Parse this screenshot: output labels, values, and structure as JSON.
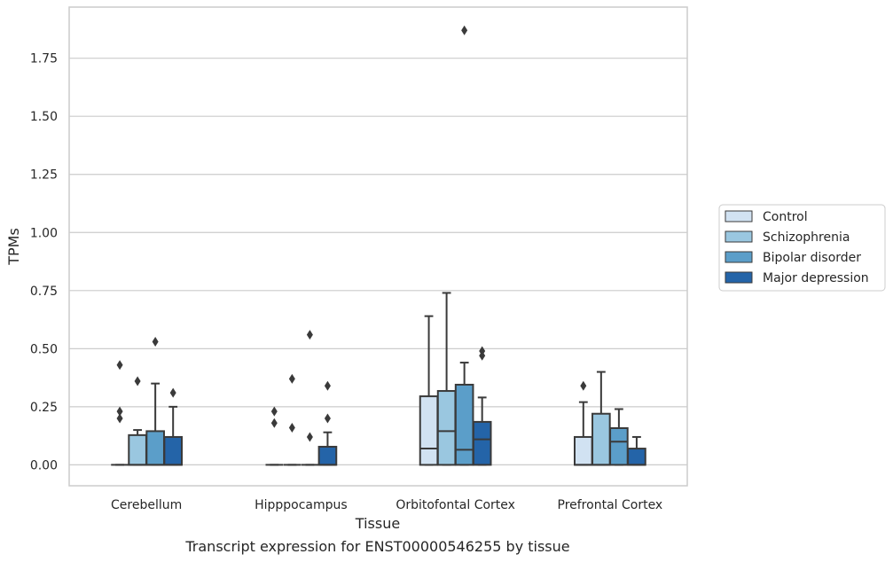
{
  "chart_data": {
    "type": "box",
    "xlabel": "Tissue",
    "ylabel": "TPMs",
    "caption": "Transcript expression for ENST00000546255 by tissue",
    "ylim": [
      -0.09,
      1.97
    ],
    "yticks": [
      0.0,
      0.25,
      0.5,
      0.75,
      1.0,
      1.25,
      1.5,
      1.75
    ],
    "ytick_labels": [
      "0.00",
      "0.25",
      "0.50",
      "0.75",
      "1.00",
      "1.25",
      "1.50",
      "1.75"
    ],
    "grid": "horizontal",
    "legend_position": "right-center",
    "categories": [
      "Cerebellum",
      "Hipppocampus",
      "Orbitofontal Cortex",
      "Prefrontal Cortex"
    ],
    "series": [
      {
        "name": "Control",
        "color": "#d1e2f2",
        "boxes": [
          {
            "q1": 0.0,
            "median": 0.0,
            "q3": 0.0,
            "whislo": 0.0,
            "whishi": 0.0,
            "fliers": [
              0.43,
              0.23,
              0.2
            ]
          },
          {
            "q1": 0.0,
            "median": 0.0,
            "q3": 0.0,
            "whislo": 0.0,
            "whishi": 0.0,
            "fliers": [
              0.23,
              0.18
            ]
          },
          {
            "q1": 0.0,
            "median": 0.07,
            "q3": 0.295,
            "whislo": 0.0,
            "whishi": 0.64,
            "fliers": []
          },
          {
            "q1": 0.0,
            "median": 0.0,
            "q3": 0.12,
            "whislo": 0.0,
            "whishi": 0.27,
            "fliers": [
              0.34
            ]
          }
        ]
      },
      {
        "name": "Schizophrenia",
        "color": "#9ac7e0",
        "boxes": [
          {
            "q1": 0.0,
            "median": 0.0,
            "q3": 0.128,
            "whislo": 0.0,
            "whishi": 0.15,
            "fliers": [
              0.36
            ]
          },
          {
            "q1": 0.0,
            "median": 0.0,
            "q3": 0.0,
            "whislo": 0.0,
            "whishi": 0.0,
            "fliers": [
              0.37,
              0.16
            ]
          },
          {
            "q1": 0.0,
            "median": 0.145,
            "q3": 0.318,
            "whislo": 0.0,
            "whishi": 0.74,
            "fliers": []
          },
          {
            "q1": 0.0,
            "median": 0.0,
            "q3": 0.22,
            "whislo": 0.0,
            "whishi": 0.4,
            "fliers": []
          }
        ]
      },
      {
        "name": "Bipolar disorder",
        "color": "#5b9ec9",
        "boxes": [
          {
            "q1": 0.0,
            "median": 0.0,
            "q3": 0.145,
            "whislo": 0.0,
            "whishi": 0.35,
            "fliers": [
              0.53
            ]
          },
          {
            "q1": 0.0,
            "median": 0.0,
            "q3": 0.0,
            "whislo": 0.0,
            "whishi": 0.0,
            "fliers": [
              0.56,
              0.12
            ]
          },
          {
            "q1": 0.0,
            "median": 0.065,
            "q3": 0.345,
            "whislo": 0.0,
            "whishi": 0.44,
            "fliers": [
              1.87
            ]
          },
          {
            "q1": 0.0,
            "median": 0.1,
            "q3": 0.158,
            "whislo": 0.0,
            "whishi": 0.24,
            "fliers": []
          }
        ]
      },
      {
        "name": "Major depression",
        "color": "#2464a8",
        "boxes": [
          {
            "q1": 0.0,
            "median": 0.0,
            "q3": 0.12,
            "whislo": 0.0,
            "whishi": 0.25,
            "fliers": [
              0.31
            ]
          },
          {
            "q1": 0.0,
            "median": 0.0,
            "q3": 0.078,
            "whislo": 0.0,
            "whishi": 0.14,
            "fliers": [
              0.34,
              0.2
            ]
          },
          {
            "q1": 0.0,
            "median": 0.11,
            "q3": 0.185,
            "whislo": 0.0,
            "whishi": 0.29,
            "fliers": [
              0.49,
              0.47
            ]
          },
          {
            "q1": 0.0,
            "median": 0.0,
            "q3": 0.07,
            "whislo": 0.0,
            "whishi": 0.12,
            "fliers": []
          }
        ]
      }
    ]
  }
}
